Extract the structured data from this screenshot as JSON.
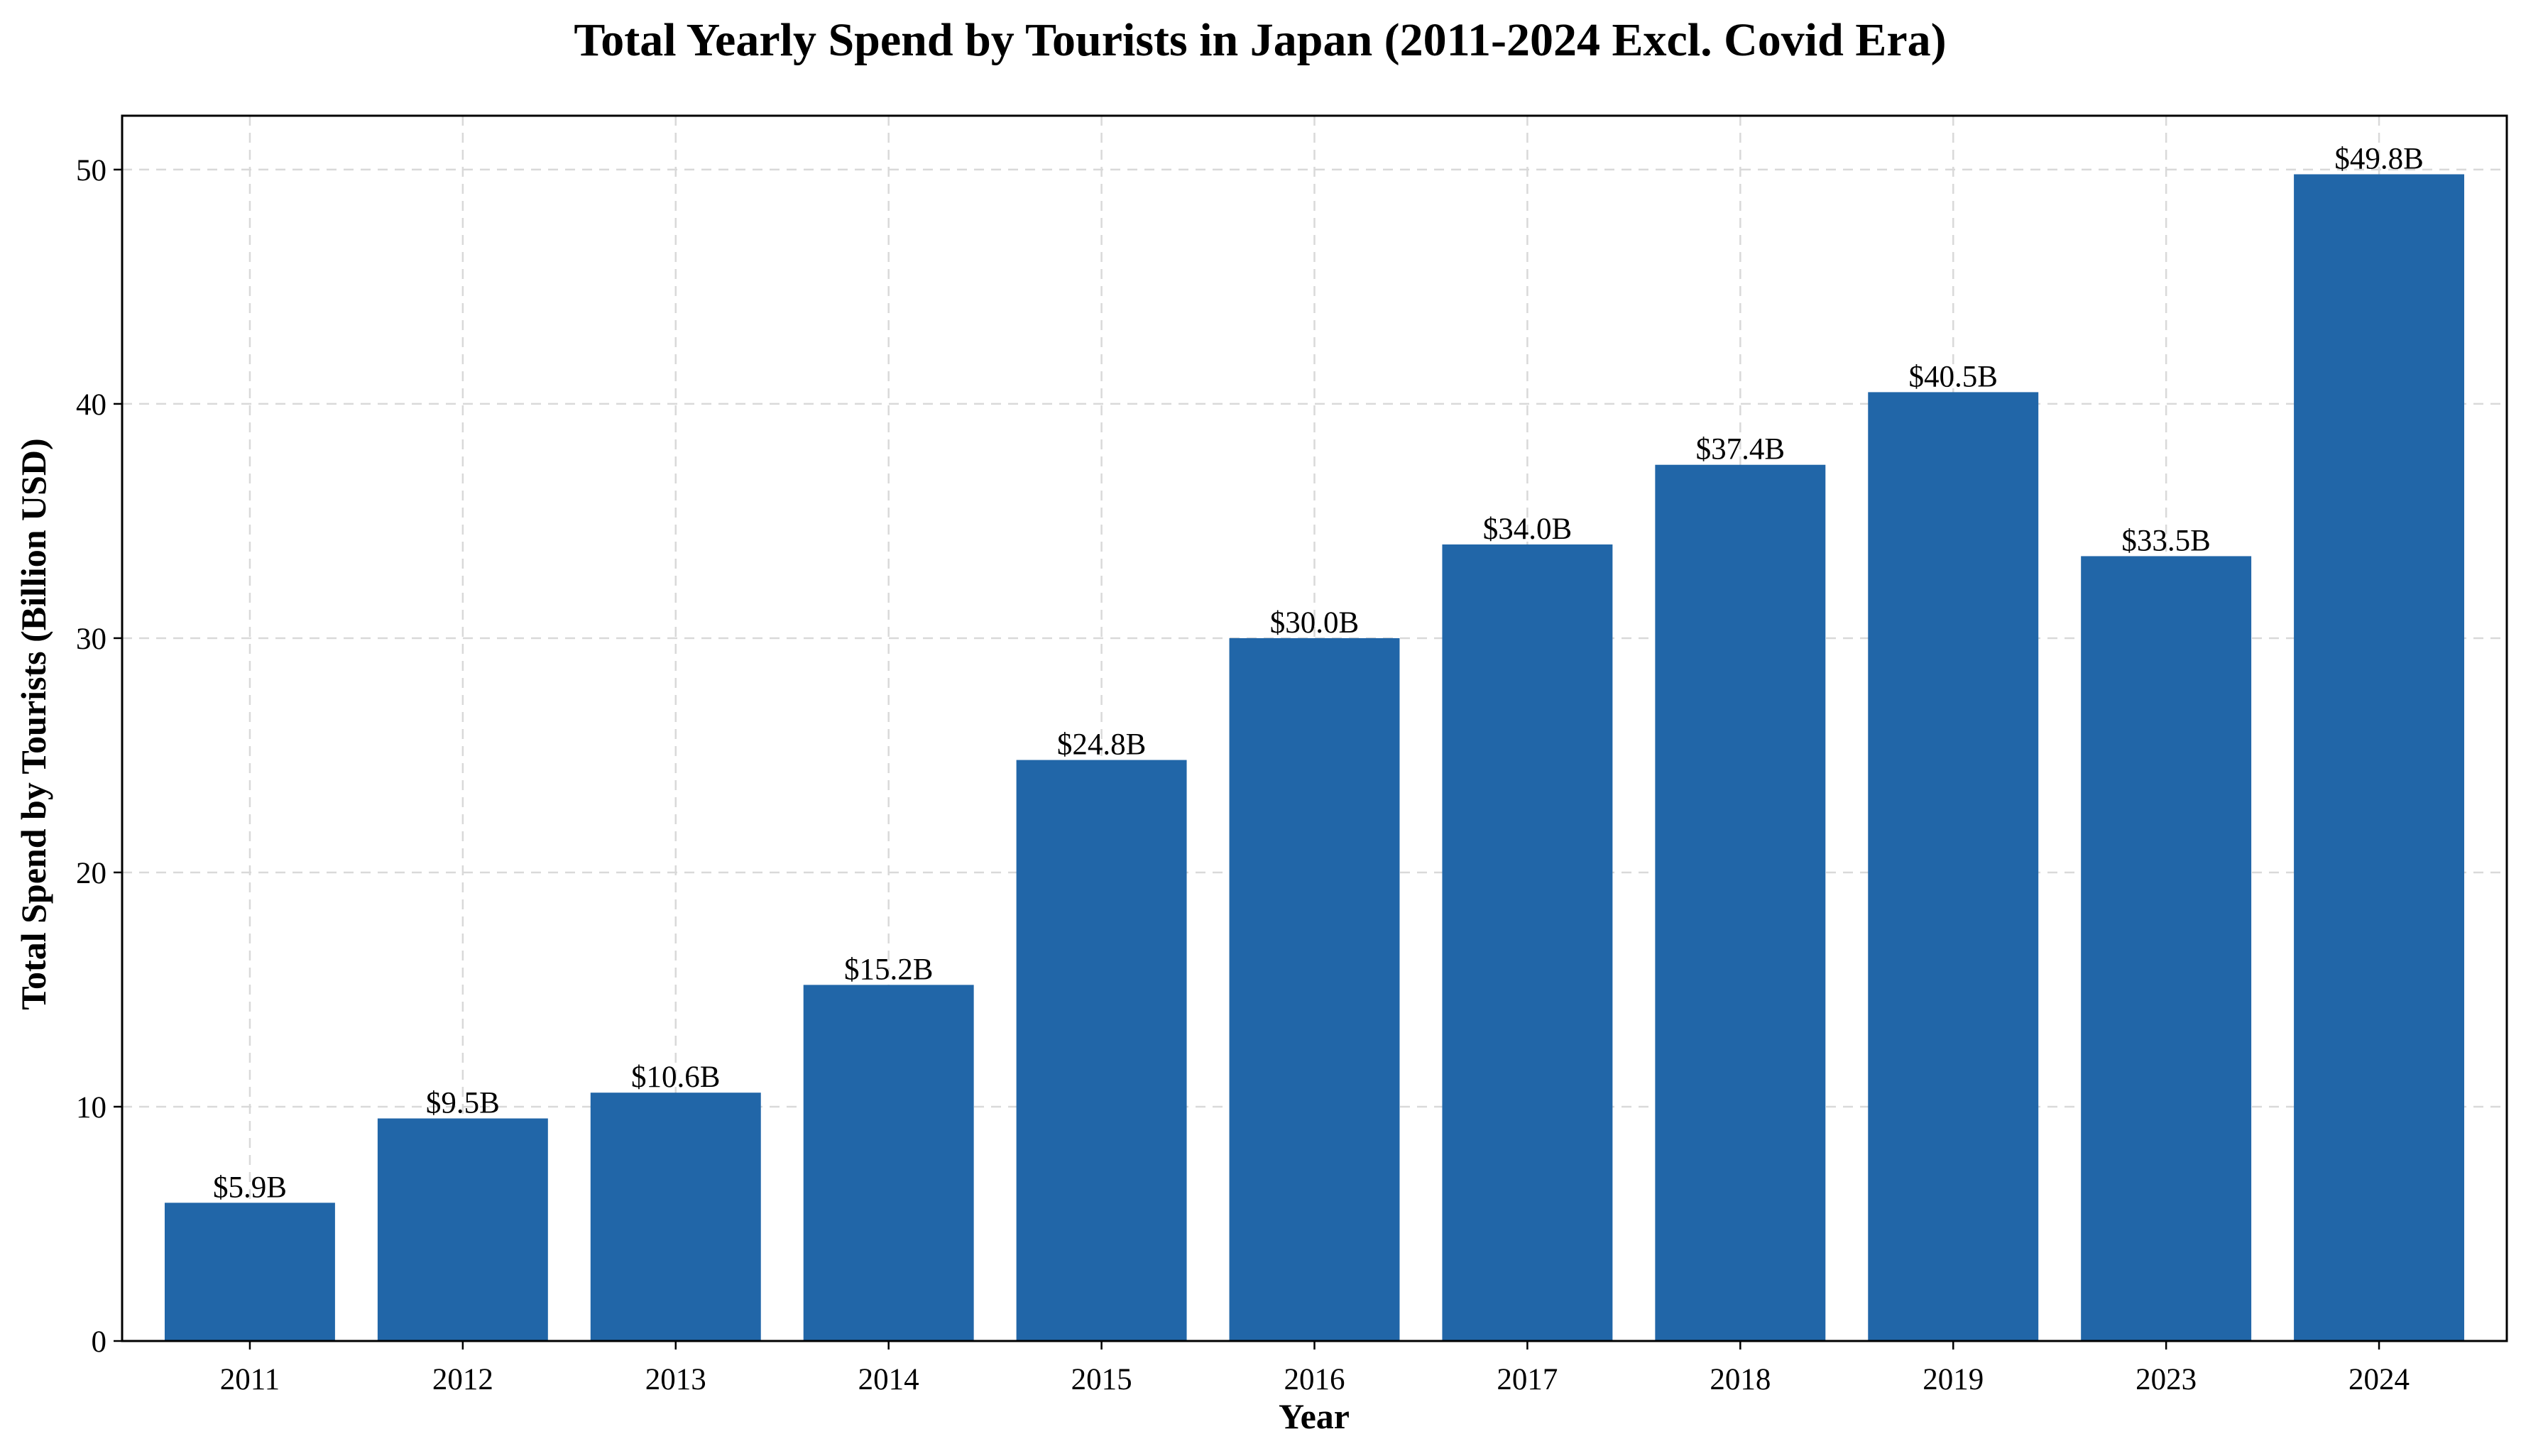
{
  "chart_data": {
    "type": "bar",
    "title": "Total Yearly Spend by Tourists in Japan (2011-2024 Excl. Covid Era)",
    "xlabel": "Year",
    "ylabel": "Total Spend by Tourists (Billion USD)",
    "categories": [
      "2011",
      "2012",
      "2013",
      "2014",
      "2015",
      "2016",
      "2017",
      "2018",
      "2019",
      "2023",
      "2024"
    ],
    "values": [
      5.9,
      9.5,
      10.6,
      15.2,
      24.8,
      30.0,
      34.0,
      37.4,
      40.5,
      33.5,
      49.8
    ],
    "data_labels": [
      "$5.9B",
      "$9.5B",
      "$10.6B",
      "$15.2B",
      "$24.8B",
      "$30.0B",
      "$34.0B",
      "$37.4B",
      "$40.5B",
      "$33.5B",
      "$49.8B"
    ],
    "ylim": [
      0,
      52.3
    ],
    "yticks": [
      0,
      10,
      20,
      30,
      40,
      50
    ],
    "grid": true,
    "bar_color": "#2166a8"
  }
}
